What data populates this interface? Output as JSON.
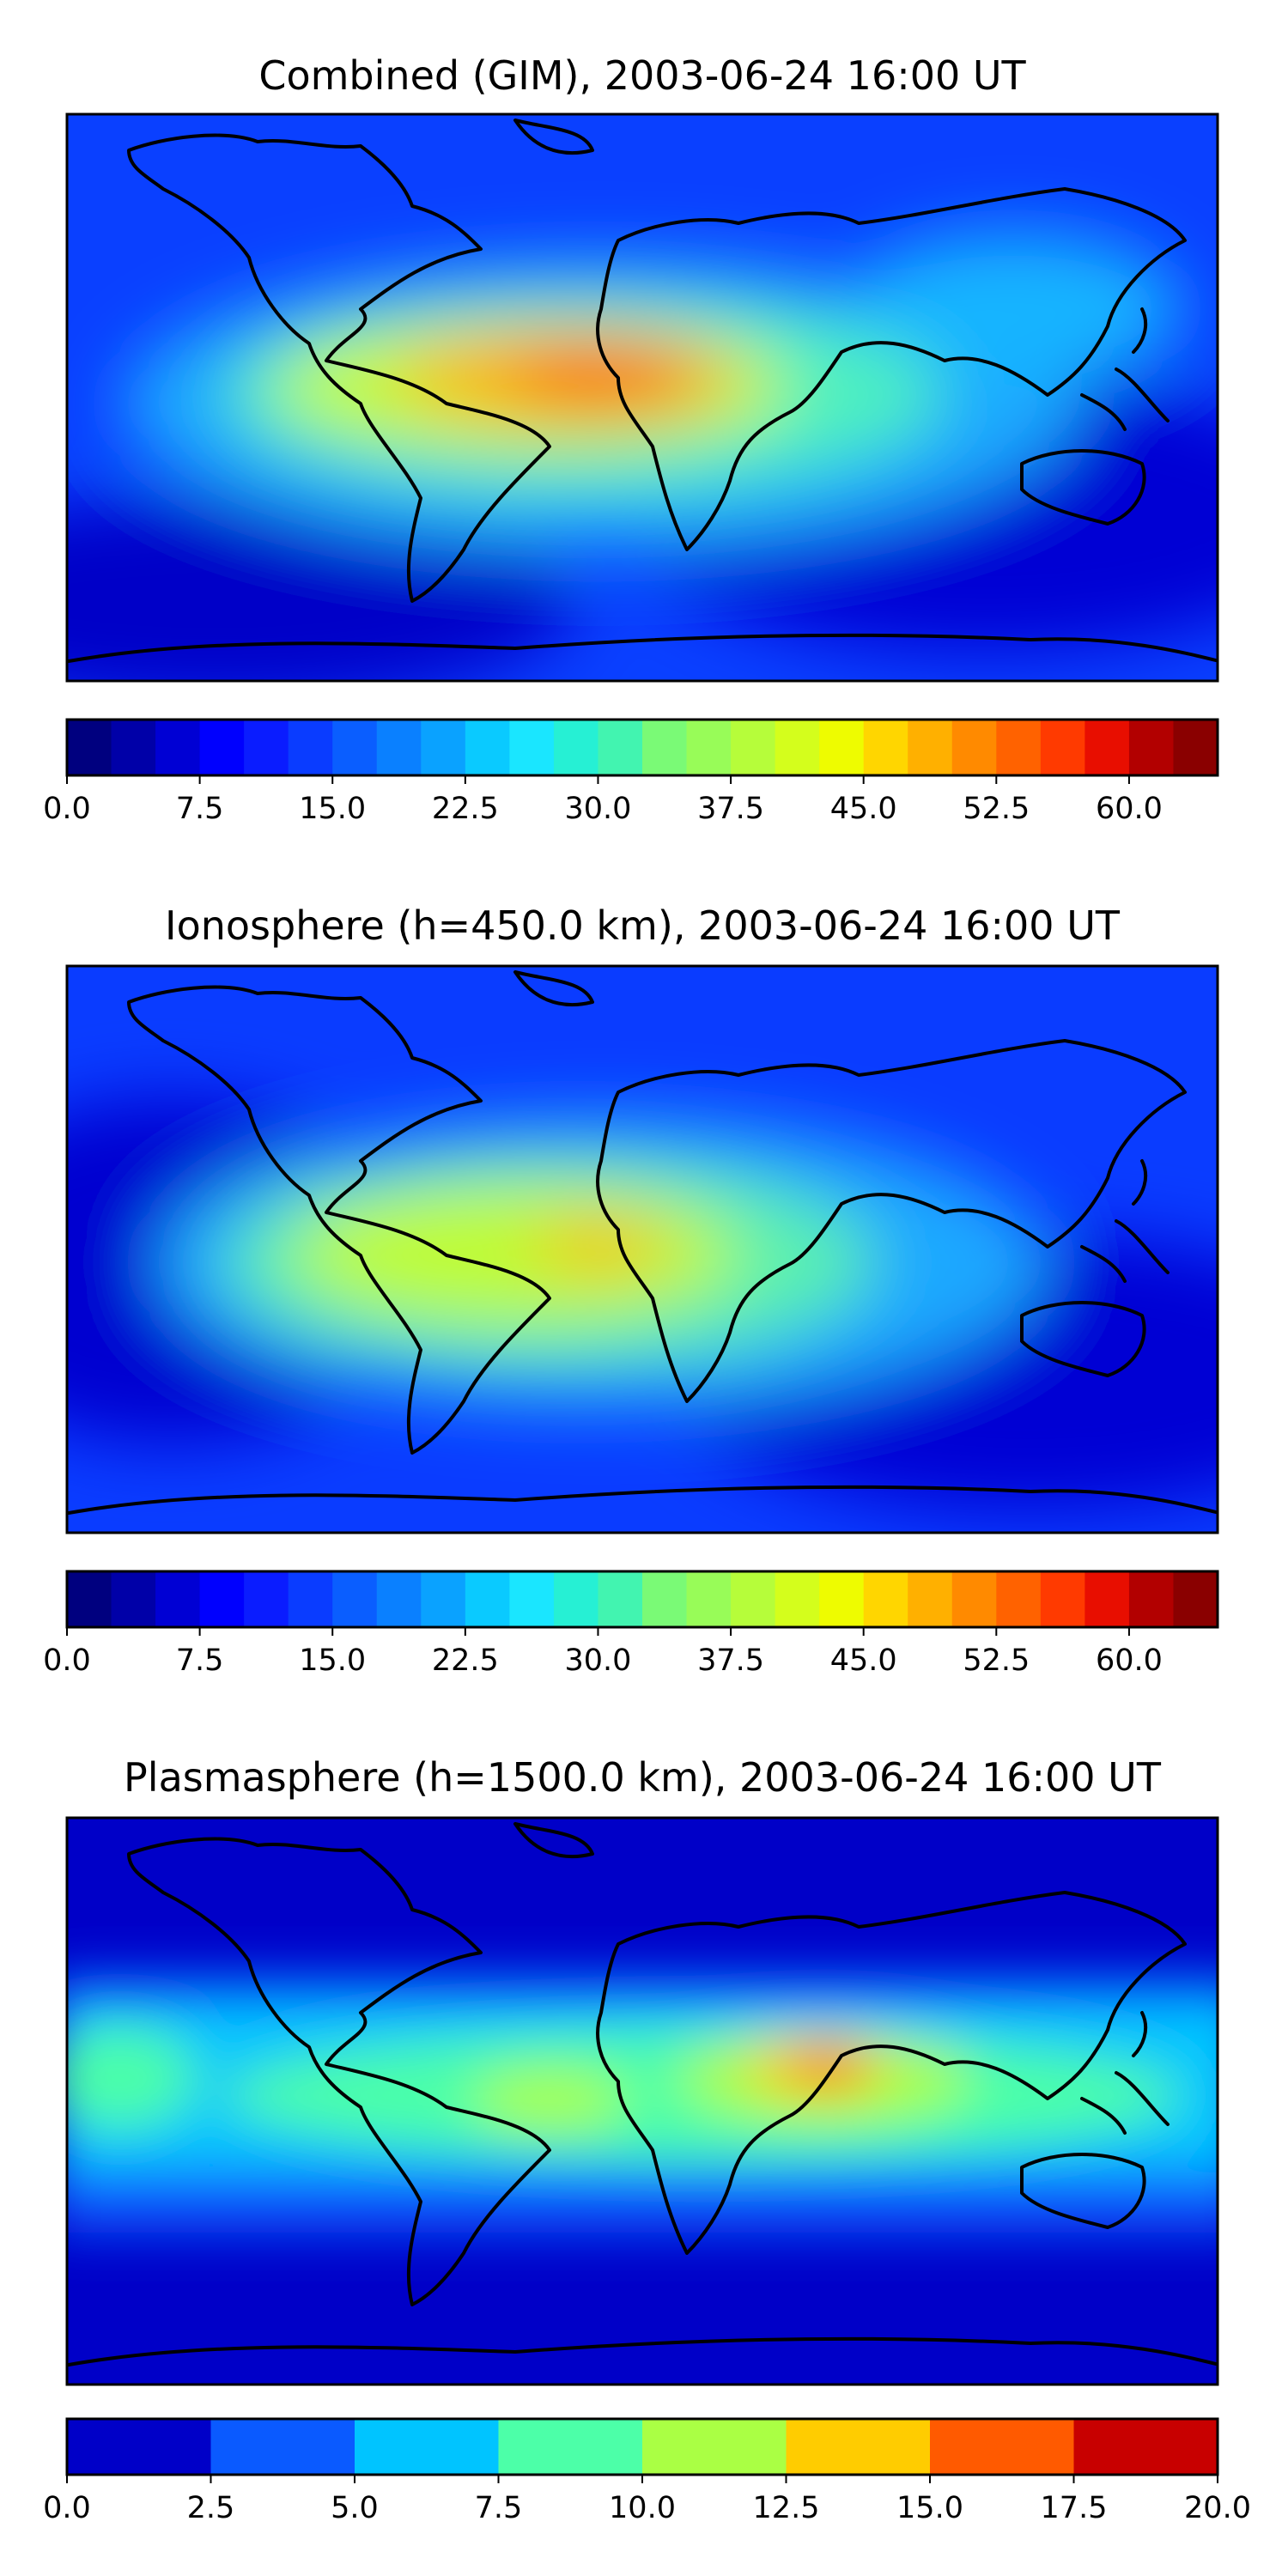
{
  "panels": [
    {
      "title": "Combined (GIM), 2003-06-24 16:00 UT",
      "colorbar": {
        "min": 0.0,
        "max": 65.0,
        "levels": 26,
        "ticks": [
          "0.0",
          "7.5",
          "15.0",
          "22.5",
          "30.0",
          "37.5",
          "45.0",
          "52.5",
          "60.0"
        ],
        "tick_values": [
          0.0,
          7.5,
          15.0,
          22.5,
          30.0,
          37.5,
          45.0,
          52.5,
          60.0
        ]
      }
    },
    {
      "title": "Ionosphere  (h=450.0 km), 2003-06-24 16:00 UT",
      "colorbar": {
        "min": 0.0,
        "max": 65.0,
        "levels": 26,
        "ticks": [
          "0.0",
          "7.5",
          "15.0",
          "22.5",
          "30.0",
          "37.5",
          "45.0",
          "52.5",
          "60.0"
        ],
        "tick_values": [
          0.0,
          7.5,
          15.0,
          22.5,
          30.0,
          37.5,
          45.0,
          52.5,
          60.0
        ]
      }
    },
    {
      "title": "Plasmasphere (h=1500.0 km), 2003-06-24 16:00 UT",
      "colorbar": {
        "min": 0.0,
        "max": 20.0,
        "levels": 8,
        "ticks": [
          "0.0",
          "2.5",
          "5.0",
          "7.5",
          "10.0",
          "12.5",
          "15.0",
          "17.5",
          "20.0"
        ],
        "tick_values": [
          0.0,
          2.5,
          5.0,
          7.5,
          10.0,
          12.5,
          15.0,
          17.5,
          20.0
        ]
      }
    }
  ],
  "colors": {
    "fine_scale": [
      "#00007f",
      "#0000a8",
      "#0000d4",
      "#0000fe",
      "#0a1cff",
      "#0a3cff",
      "#0a5eff",
      "#0a80ff",
      "#0aa2ff",
      "#0acaff",
      "#1ae6ff",
      "#26f0d4",
      "#42f4b0",
      "#5ef794",
      "#7afa76",
      "#98fc58",
      "#b6fd3a",
      "#d4fe1c",
      "#eefc00",
      "#ffd600",
      "#ffb000",
      "#ff8a00",
      "#ff6200",
      "#ff3a00",
      "#e80e00",
      "#b20000",
      "#8a0000"
    ],
    "coarse_scale": [
      "#0000c8",
      "#0a5aff",
      "#00c4ff",
      "#4cffa8",
      "#aaff44",
      "#ffcc00",
      "#ff5a00",
      "#c80000"
    ]
  }
}
